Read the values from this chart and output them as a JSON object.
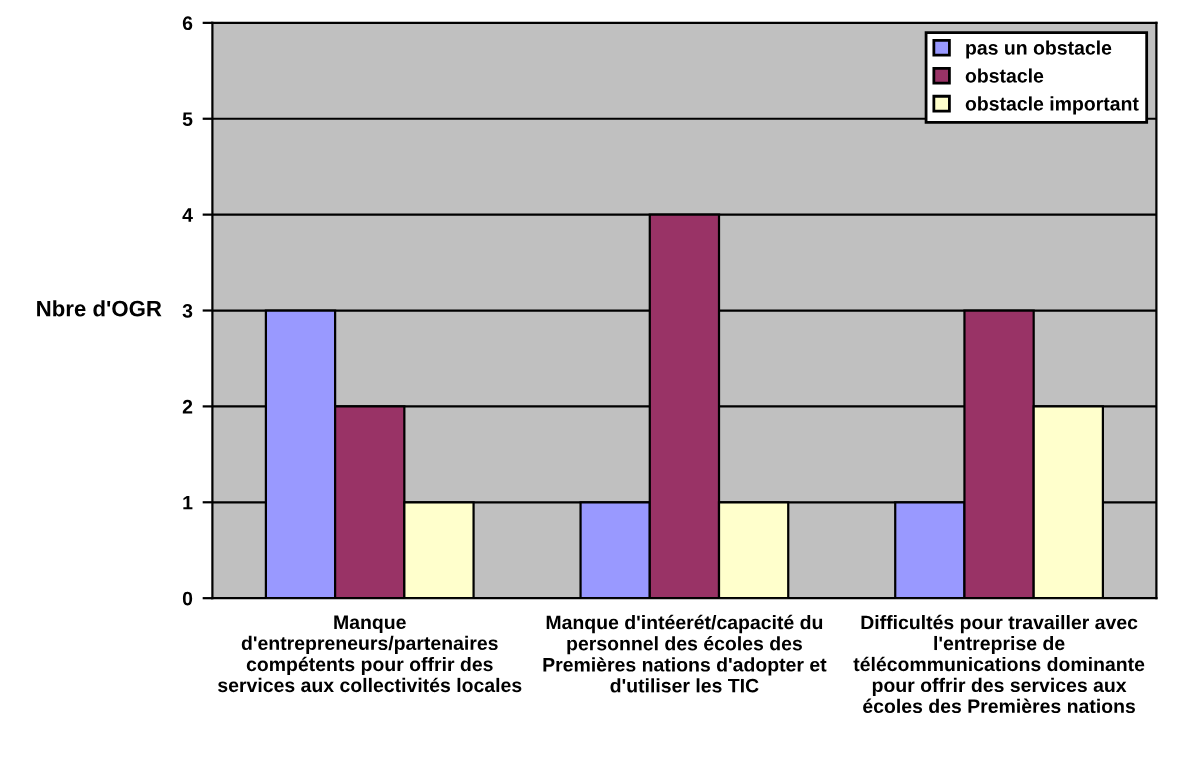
{
  "chart_data": {
    "type": "bar",
    "ylabel": "Nbre d'OGR",
    "categories": [
      "Manque\nd'entrepreneurs/partenaires\ncompétents pour offrir des\nservices aux collectivités locales",
      "Manque d'intéerét/capacité du\npersonnel des écoles des\nPremières nations d'adopter et\nd'utiliser les TIC",
      "Difficultés pour travailler avec\nl'entreprise de\ntélécommunications dominante\npour offrir des services aux\nécoles des Premières nations"
    ],
    "series": [
      {
        "name": "pas un obstacle",
        "color": "#9999ff",
        "values": [
          3,
          1,
          1
        ]
      },
      {
        "name": "obstacle",
        "color": "#993366",
        "values": [
          2,
          4,
          3
        ]
      },
      {
        "name": "obstacle important",
        "color": "#ffffcc",
        "values": [
          1,
          1,
          2
        ]
      }
    ],
    "ylim": [
      0,
      6
    ],
    "yticks": [
      0,
      1,
      2,
      3,
      4,
      5,
      6
    ],
    "grid": "y",
    "legend": "top right"
  }
}
